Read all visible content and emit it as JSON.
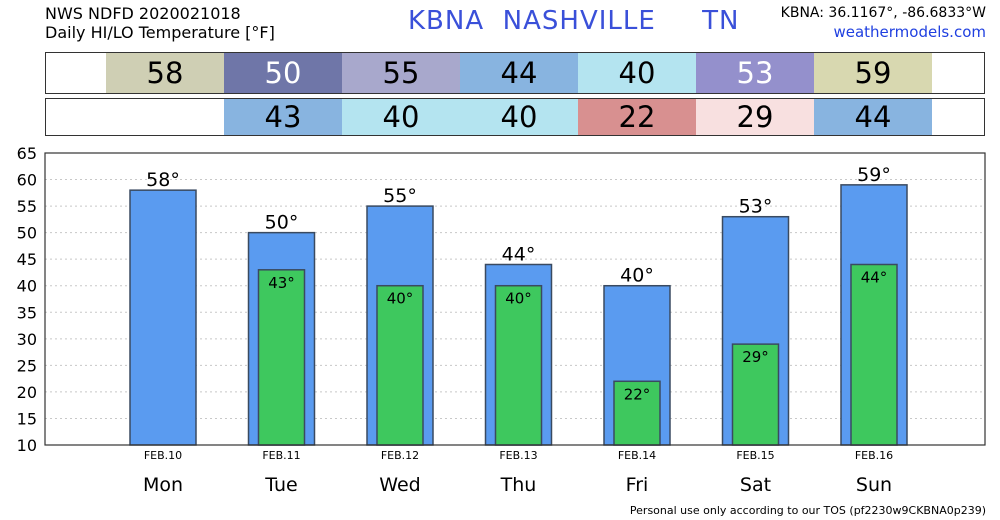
{
  "header": {
    "line1": "NWS NDFD 2020021018",
    "line2": "Daily HI/LO Temperature [°F]",
    "station": "KBNA  NASHVILLE     TN",
    "coords": "KBNA: 36.1167°, -86.6833°W",
    "site": "weathermodels.com"
  },
  "footer": "Personal use only according to our TOS (pf2230w9CKBNA0p239)",
  "highs_row": [
    {
      "text": "58",
      "color": "#cfcfb4",
      "fg": "#000000"
    },
    {
      "text": "50",
      "color": "#6f76a8",
      "fg": "#ffffff"
    },
    {
      "text": "55",
      "color": "#a8a8cc",
      "fg": "#000000"
    },
    {
      "text": "44",
      "color": "#88b4e0",
      "fg": "#000000"
    },
    {
      "text": "40",
      "color": "#b4e4f0",
      "fg": "#000000"
    },
    {
      "text": "53",
      "color": "#9490cc",
      "fg": "#ffffff"
    },
    {
      "text": "59",
      "color": "#d8d8b0",
      "fg": "#000000"
    }
  ],
  "lows_row": [
    {
      "text": "",
      "color": "#ffffff",
      "fg": "#000000"
    },
    {
      "text": "43",
      "color": "#88b4e0",
      "fg": "#000000"
    },
    {
      "text": "40",
      "color": "#b4e4f0",
      "fg": "#000000"
    },
    {
      "text": "40",
      "color": "#b4e4f0",
      "fg": "#000000"
    },
    {
      "text": "22",
      "color": "#d89090",
      "fg": "#000000"
    },
    {
      "text": "29",
      "color": "#f8e0e0",
      "fg": "#000000"
    },
    {
      "text": "44",
      "color": "#88b4e0",
      "fg": "#000000"
    }
  ],
  "chart_data": {
    "type": "bar",
    "categories": [
      "Mon",
      "Tue",
      "Wed",
      "Thu",
      "Fri",
      "Sat",
      "Sun"
    ],
    "dates": [
      "FEB.10",
      "FEB.11",
      "FEB.12",
      "FEB.13",
      "FEB.14",
      "FEB.15",
      "FEB.16"
    ],
    "series": [
      {
        "values": [
          58,
          50,
          55,
          44,
          40,
          53,
          59
        ],
        "color": "#5a9bf0"
      },
      {
        "values": [
          null,
          43,
          40,
          40,
          22,
          29,
          44
        ],
        "color": "#3ec85e"
      }
    ],
    "ylim": [
      10,
      65
    ],
    "yticks": [
      10,
      15,
      20,
      25,
      30,
      35,
      40,
      45,
      50,
      55,
      60,
      65
    ],
    "grid": true,
    "degree_symbol": "°"
  }
}
